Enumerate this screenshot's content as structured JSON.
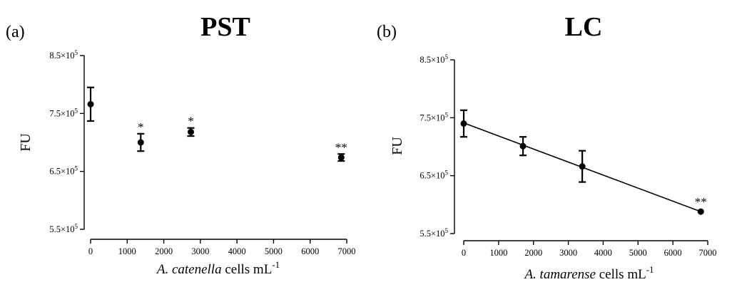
{
  "chart_data": [
    {
      "type": "scatter",
      "panel_label": "(a)",
      "title": "PST",
      "ylabel": "FU",
      "xlabel_italic": "A. catenella",
      "xlabel_rest": " cells mL",
      "xlabel_sup": "-1",
      "xlim": [
        0,
        7000
      ],
      "ylim": [
        550000,
        850000
      ],
      "xticks": [
        "0",
        "1000",
        "2000",
        "3000",
        "4000",
        "5000",
        "6000",
        "7000"
      ],
      "yticks": [
        {
          "m": "8.5",
          "s": "5"
        },
        {
          "m": "7.5",
          "s": "5"
        },
        {
          "m": "6.5",
          "s": "5"
        },
        {
          "m": "5.5",
          "s": "5"
        }
      ],
      "points": [
        {
          "x": 0,
          "y": 766000,
          "err": 29000,
          "sig": ""
        },
        {
          "x": 1370,
          "y": 700000,
          "err": 15000,
          "sig": "*"
        },
        {
          "x": 2740,
          "y": 718000,
          "err": 7000,
          "sig": "*"
        },
        {
          "x": 6850,
          "y": 674000,
          "err": 6000,
          "sig": "**"
        }
      ],
      "regression": null
    },
    {
      "type": "scatter",
      "panel_label": "(b)",
      "title": "LC",
      "ylabel": "FU",
      "xlabel_italic": "A. tamarense",
      "xlabel_rest": " cells mL",
      "xlabel_sup": "-1",
      "xlim": [
        0,
        7000
      ],
      "ylim": [
        550000,
        850000
      ],
      "xticks": [
        "0",
        "1000",
        "2000",
        "3000",
        "4000",
        "5000",
        "6000",
        "7000"
      ],
      "yticks": [
        {
          "m": "8.5",
          "s": "5"
        },
        {
          "m": "7.5",
          "s": "5"
        },
        {
          "m": "6.5",
          "s": "5"
        },
        {
          "m": "5.5",
          "s": "5"
        }
      ],
      "points": [
        {
          "x": 0,
          "y": 740000,
          "err": 23000,
          "sig": ""
        },
        {
          "x": 1700,
          "y": 701000,
          "err": 16000,
          "sig": ""
        },
        {
          "x": 3400,
          "y": 666000,
          "err": 27000,
          "sig": ""
        },
        {
          "x": 6800,
          "y": 588000,
          "err": 0,
          "sig": "**"
        }
      ],
      "regression": {
        "x0": 0,
        "y0": 741000,
        "x1": 6800,
        "y1": 588000
      }
    }
  ]
}
